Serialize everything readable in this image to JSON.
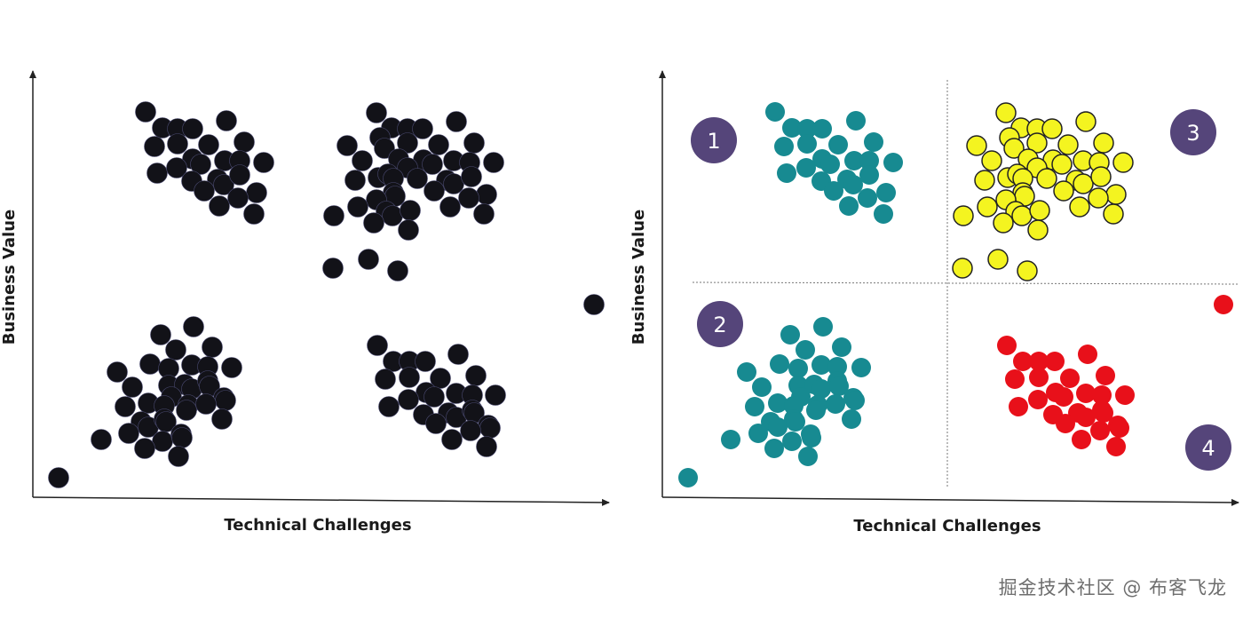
{
  "chart_data": [
    {
      "type": "scatter",
      "title": "",
      "xlabel": "Technical Challenges",
      "ylabel": "Business Value",
      "xlim": [
        0,
        64.8
      ],
      "ylim": [
        0,
        48
      ],
      "grid": false,
      "point_color": "#121218",
      "points": [
        [
          12.7,
          43.4
        ],
        [
          14.6,
          41.6
        ],
        [
          16.3,
          41.5
        ],
        [
          18.0,
          41.5
        ],
        [
          21.8,
          42.4
        ],
        [
          13.7,
          39.5
        ],
        [
          16.3,
          39.8
        ],
        [
          19.8,
          39.7
        ],
        [
          23.8,
          40.0
        ],
        [
          18.0,
          38.1
        ],
        [
          18.9,
          37.5
        ],
        [
          21.6,
          37.9
        ],
        [
          23.3,
          37.9
        ],
        [
          26.0,
          37.7
        ],
        [
          14.0,
          36.5
        ],
        [
          16.2,
          37.1
        ],
        [
          17.9,
          35.6
        ],
        [
          20.8,
          35.8
        ],
        [
          21.5,
          35.2
        ],
        [
          23.3,
          36.3
        ],
        [
          25.2,
          34.3
        ],
        [
          19.3,
          34.5
        ],
        [
          23.1,
          33.7
        ],
        [
          21.0,
          32.8
        ],
        [
          24.9,
          31.9
        ],
        [
          38.7,
          43.3
        ],
        [
          40.4,
          41.6
        ],
        [
          42.2,
          41.5
        ],
        [
          43.9,
          41.5
        ],
        [
          47.7,
          42.3
        ],
        [
          39.1,
          40.5
        ],
        [
          39.6,
          39.3
        ],
        [
          42.2,
          39.9
        ],
        [
          45.7,
          39.7
        ],
        [
          49.7,
          39.9
        ],
        [
          35.4,
          39.6
        ],
        [
          37.1,
          37.9
        ],
        [
          41.2,
          38.1
        ],
        [
          44.0,
          38.0
        ],
        [
          45.0,
          37.5
        ],
        [
          47.4,
          37.9
        ],
        [
          49.2,
          37.7
        ],
        [
          51.9,
          37.7
        ],
        [
          42.2,
          37.1
        ],
        [
          36.3,
          35.7
        ],
        [
          38.9,
          36.0
        ],
        [
          40.0,
          36.4
        ],
        [
          40.6,
          35.9
        ],
        [
          43.3,
          35.9
        ],
        [
          46.6,
          35.7
        ],
        [
          47.4,
          35.3
        ],
        [
          49.4,
          36.1
        ],
        [
          45.2,
          34.5
        ],
        [
          51.1,
          34.1
        ],
        [
          49.1,
          33.7
        ],
        [
          40.6,
          34.3
        ],
        [
          40.8,
          33.9
        ],
        [
          38.7,
          33.5
        ],
        [
          36.6,
          32.7
        ],
        [
          39.8,
          32.2
        ],
        [
          40.5,
          31.7
        ],
        [
          42.5,
          32.3
        ],
        [
          47.0,
          32.7
        ],
        [
          50.8,
          31.9
        ],
        [
          33.9,
          31.7
        ],
        [
          38.4,
          30.9
        ],
        [
          42.3,
          30.1
        ],
        [
          33.8,
          25.8
        ],
        [
          37.8,
          26.8
        ],
        [
          41.1,
          25.5
        ],
        [
          63.2,
          21.7
        ],
        [
          18.1,
          19.2
        ],
        [
          14.4,
          18.3
        ],
        [
          16.1,
          16.6
        ],
        [
          20.2,
          16.9
        ],
        [
          9.5,
          14.1
        ],
        [
          13.2,
          15.0
        ],
        [
          15.3,
          14.5
        ],
        [
          17.9,
          14.9
        ],
        [
          19.7,
          14.7
        ],
        [
          22.4,
          14.6
        ],
        [
          11.2,
          12.4
        ],
        [
          15.3,
          12.6
        ],
        [
          17.1,
          12.7
        ],
        [
          17.9,
          12.2
        ],
        [
          19.7,
          13.1
        ],
        [
          19.9,
          12.5
        ],
        [
          15.6,
          11.3
        ],
        [
          21.5,
          11.2
        ],
        [
          21.7,
          10.9
        ],
        [
          10.4,
          10.2
        ],
        [
          13.0,
          10.6
        ],
        [
          14.8,
          10.3
        ],
        [
          17.5,
          10.4
        ],
        [
          17.3,
          9.8
        ],
        [
          19.5,
          10.5
        ],
        [
          12.2,
          8.5
        ],
        [
          13.0,
          7.9
        ],
        [
          14.8,
          8.8
        ],
        [
          15.0,
          8.5
        ],
        [
          21.3,
          8.8
        ],
        [
          10.8,
          7.2
        ],
        [
          14.6,
          6.3
        ],
        [
          16.7,
          7.1
        ],
        [
          16.8,
          6.7
        ],
        [
          7.7,
          6.5
        ],
        [
          12.6,
          5.5
        ],
        [
          16.4,
          4.6
        ],
        [
          2.9,
          2.2
        ],
        [
          38.8,
          17.1
        ],
        [
          40.6,
          15.3
        ],
        [
          42.4,
          15.3
        ],
        [
          44.2,
          15.3
        ],
        [
          47.9,
          16.1
        ],
        [
          39.7,
          13.3
        ],
        [
          42.4,
          13.5
        ],
        [
          45.9,
          13.4
        ],
        [
          49.9,
          13.7
        ],
        [
          44.3,
          11.8
        ],
        [
          45.2,
          11.3
        ],
        [
          47.7,
          11.7
        ],
        [
          49.5,
          11.5
        ],
        [
          52.1,
          11.5
        ],
        [
          40.1,
          10.2
        ],
        [
          42.3,
          11.0
        ],
        [
          44.0,
          9.3
        ],
        [
          46.8,
          9.5
        ],
        [
          47.7,
          9.0
        ],
        [
          49.5,
          9.8
        ],
        [
          49.7,
          9.5
        ],
        [
          45.4,
          8.3
        ],
        [
          51.3,
          8.1
        ],
        [
          51.5,
          7.8
        ],
        [
          49.3,
          7.5
        ],
        [
          47.2,
          6.5
        ],
        [
          51.1,
          5.7
        ]
      ]
    },
    {
      "type": "scatter",
      "title": "",
      "xlabel": "Technical Challenges",
      "ylabel": "Business Value",
      "xlim": [
        0,
        64.8
      ],
      "ylim": [
        0,
        48
      ],
      "grid": false,
      "quadrant_split": {
        "x": 32.1,
        "y": 24.2
      },
      "quadrant_colors": {
        "left": "#178a91",
        "top_right": "#f4f420",
        "bottom_right": "#e8101a"
      },
      "badge_color": "#55457a",
      "quadrant_labels": [
        "1",
        "2",
        "3",
        "4"
      ],
      "points": "same as chart 1, colored by quadrant"
    }
  ],
  "watermark": "掘金技术社区 @ 布客飞龙"
}
